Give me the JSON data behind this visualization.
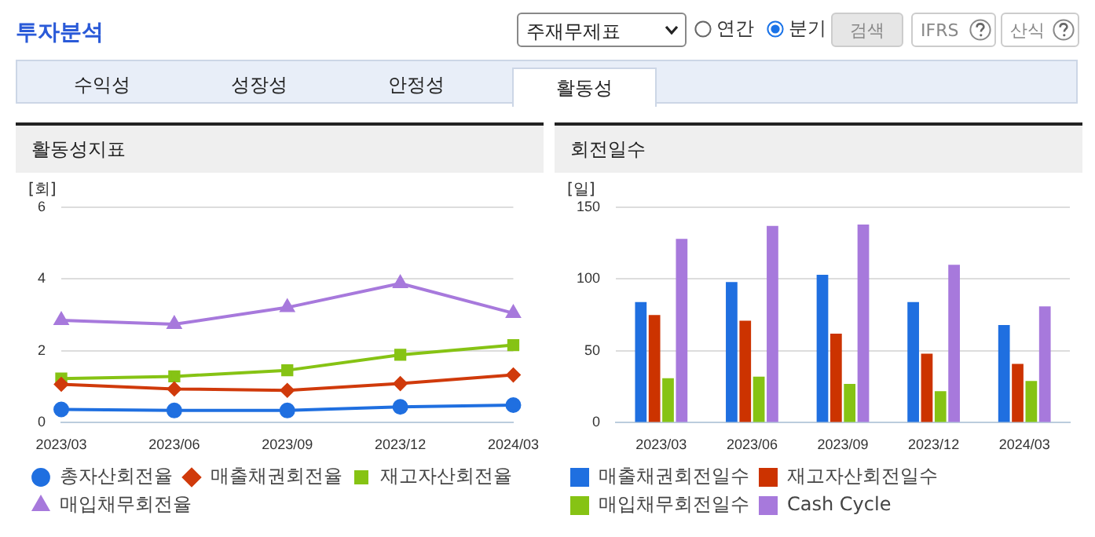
{
  "chart_data": [
    {
      "type": "line",
      "title": "활동성지표",
      "ylabel": "[회]",
      "categories": [
        "2023/03",
        "2023/06",
        "2023/09",
        "2023/12",
        "2024/03"
      ],
      "series": [
        {
          "name": "총자산회전율",
          "color": "#1f6fe0",
          "marker": "circle",
          "values": [
            0.37,
            0.34,
            0.34,
            0.44,
            0.49
          ]
        },
        {
          "name": "매출채권회전율",
          "color": "#d03a0b",
          "marker": "diamond",
          "values": [
            1.07,
            0.94,
            0.9,
            1.09,
            1.33
          ]
        },
        {
          "name": "재고자산회전율",
          "color": "#86c314",
          "marker": "square",
          "values": [
            1.23,
            1.29,
            1.46,
            1.89,
            2.16
          ]
        },
        {
          "name": "매입채무회전율",
          "color": "#a779dc",
          "marker": "triangle",
          "values": [
            2.85,
            2.74,
            3.21,
            3.88,
            3.05
          ]
        }
      ],
      "ylim": [
        0,
        6
      ],
      "yticks": [
        0,
        2,
        4,
        6
      ],
      "grid": "y",
      "legend": "bottom",
      "annotations": [
        "투자분석",
        "주재무제표",
        "연간",
        "분기",
        "검색",
        "IFRS",
        "산식",
        "수익성",
        "성장성",
        "안정성",
        "활동성"
      ]
    },
    {
      "type": "bar",
      "title": "회전일수",
      "ylabel": "[일]",
      "categories": [
        "2023/03",
        "2023/06",
        "2023/09",
        "2023/12",
        "2024/03"
      ],
      "series": [
        {
          "name": "매출채권회전일수",
          "color": "#1f6fe0",
          "values": [
            84,
            98,
            103,
            84,
            68
          ]
        },
        {
          "name": "재고자산회전일수",
          "color": "#cc3300",
          "values": [
            75,
            71,
            62,
            48,
            41
          ]
        },
        {
          "name": "매입채무회전일수",
          "color": "#86c314",
          "values": [
            31,
            32,
            27,
            22,
            29
          ]
        },
        {
          "name": "Cash Cycle",
          "color": "#a779dc",
          "values": [
            128,
            137,
            138,
            110,
            81
          ]
        }
      ],
      "ylim": [
        0,
        150
      ],
      "yticks": [
        0,
        50,
        100,
        150
      ],
      "grid": "y",
      "legend": "bottom"
    }
  ]
}
